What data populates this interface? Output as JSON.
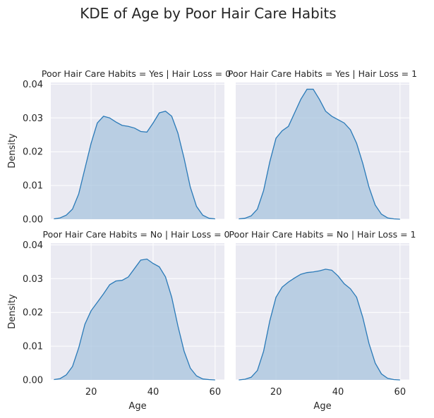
{
  "chart_data": {
    "type": "area",
    "title": "KDE of Age by Poor Hair Care Habits",
    "grid": true,
    "x_ticks": [
      20,
      40,
      60
    ],
    "y_ticks": [
      "0.00",
      "0.01",
      "0.02",
      "0.03",
      "0.04"
    ],
    "xlim": [
      7,
      63
    ],
    "ylim": [
      0,
      0.0405
    ],
    "colors": {
      "fill": "#a8c4de",
      "line": "#2a7ab8",
      "panel_bg": "#eaeaf2"
    },
    "panels": [
      {
        "title": "Poor Hair Care Habits = Yes | Hair Loss = 0",
        "xlabel": "",
        "ylabel": "Density",
        "x": [
          8,
          10,
          12,
          14,
          16,
          18,
          20,
          22,
          24,
          26,
          28,
          30,
          32,
          34,
          36,
          38,
          40,
          42,
          44,
          46,
          48,
          50,
          52,
          54,
          56,
          58,
          60
        ],
        "y": [
          0.0001,
          0.0004,
          0.0012,
          0.003,
          0.0075,
          0.015,
          0.0225,
          0.0285,
          0.0305,
          0.03,
          0.0288,
          0.0278,
          0.0275,
          0.027,
          0.026,
          0.0258,
          0.0285,
          0.0315,
          0.032,
          0.0305,
          0.0255,
          0.018,
          0.0095,
          0.0038,
          0.0012,
          0.0003,
          0.0001
        ]
      },
      {
        "title": "Poor Hair Care Habits = Yes | Hair Loss = 1",
        "xlabel": "",
        "ylabel": "",
        "x": [
          8,
          10,
          12,
          14,
          16,
          18,
          20,
          22,
          24,
          26,
          28,
          30,
          32,
          34,
          36,
          38,
          40,
          42,
          44,
          46,
          48,
          50,
          52,
          54,
          56,
          58,
          60
        ],
        "y": [
          0.0001,
          0.0003,
          0.001,
          0.003,
          0.0085,
          0.017,
          0.024,
          0.0262,
          0.0275,
          0.0315,
          0.0355,
          0.0385,
          0.0385,
          0.0355,
          0.032,
          0.0305,
          0.0295,
          0.0285,
          0.0265,
          0.0225,
          0.0165,
          0.0095,
          0.0042,
          0.0015,
          0.0004,
          0.0001,
          0.0
        ]
      },
      {
        "title": "Poor Hair Care Habits = No | Hair Loss = 0",
        "xlabel": "Age",
        "ylabel": "Density",
        "x": [
          8,
          10,
          12,
          14,
          16,
          18,
          20,
          22,
          24,
          26,
          28,
          30,
          32,
          34,
          36,
          38,
          40,
          42,
          44,
          46,
          48,
          50,
          52,
          54,
          56,
          58,
          60
        ],
        "y": [
          0.0001,
          0.0004,
          0.0015,
          0.004,
          0.0095,
          0.0165,
          0.0205,
          0.023,
          0.0255,
          0.0282,
          0.0293,
          0.0295,
          0.0305,
          0.033,
          0.0355,
          0.0358,
          0.0345,
          0.0335,
          0.0305,
          0.0245,
          0.016,
          0.0085,
          0.0035,
          0.0012,
          0.0003,
          0.0001,
          0.0
        ]
      },
      {
        "title": "Poor Hair Care Habits = No | Hair Loss = 1",
        "xlabel": "Age",
        "ylabel": "",
        "x": [
          8,
          10,
          12,
          14,
          16,
          18,
          20,
          22,
          24,
          26,
          28,
          30,
          32,
          34,
          36,
          38,
          40,
          42,
          44,
          46,
          48,
          50,
          52,
          54,
          56,
          58,
          60
        ],
        "y": [
          0.0,
          0.0002,
          0.0008,
          0.0028,
          0.0085,
          0.0175,
          0.0245,
          0.0275,
          0.029,
          0.0302,
          0.0313,
          0.0318,
          0.032,
          0.0323,
          0.0328,
          0.0325,
          0.0308,
          0.0285,
          0.027,
          0.0245,
          0.0185,
          0.0108,
          0.005,
          0.0018,
          0.0005,
          0.0001,
          0.0
        ]
      }
    ]
  }
}
